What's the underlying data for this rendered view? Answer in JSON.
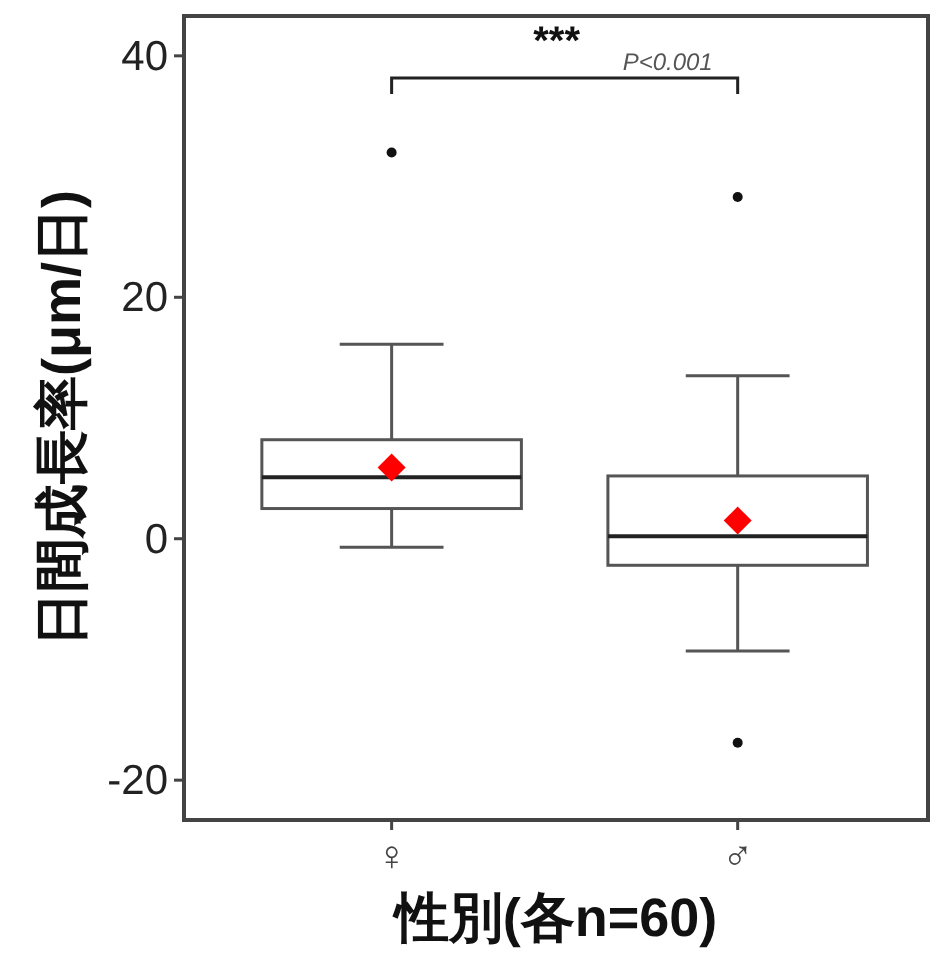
{
  "chart_data": {
    "type": "box",
    "xlabel": "性別(各n=60)",
    "ylabel": "日間成長率(μm/日)",
    "categories": [
      "♀",
      "♂"
    ],
    "boxes": [
      {
        "low": -0.7,
        "q1": 2.5,
        "median": 5.1,
        "q3": 8.2,
        "high": 16.1,
        "mean": 5.9,
        "outliers": [
          32.0
        ]
      },
      {
        "low": -9.3,
        "q1": -2.2,
        "median": 0.2,
        "q3": 5.2,
        "high": 13.5,
        "mean": 1.5,
        "outliers": [
          28.3,
          -16.9
        ]
      }
    ],
    "ylim": [
      -23.3,
      43.3
    ],
    "yticks": [
      -20,
      0,
      20,
      40
    ],
    "annotations": [
      "***",
      "P<0.001"
    ]
  }
}
